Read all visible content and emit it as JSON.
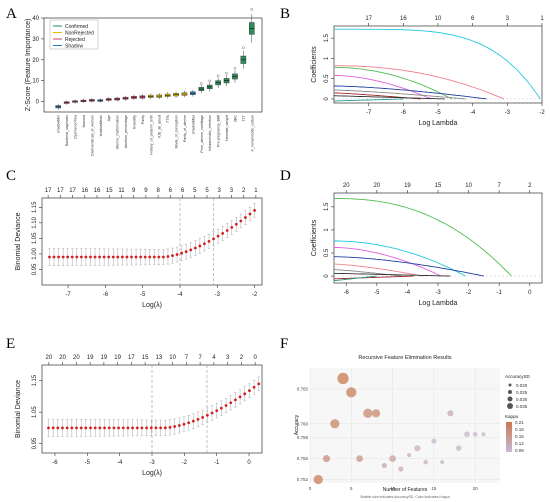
{
  "panel_labels": [
    "A",
    "B",
    "C",
    "D",
    "E",
    "F"
  ],
  "chart_data": [
    {
      "panel": "A",
      "type": "box",
      "ylabel": "Z-Score (Feature Importance)",
      "ylim": [
        -5,
        40
      ],
      "yticks": [
        0,
        10,
        20,
        30,
        40
      ],
      "legend": [
        {
          "name": "Confirmed",
          "color": "#2e8b57"
        },
        {
          "name": "NonRejected",
          "color": "#e8c000"
        },
        {
          "name": "Rejected",
          "color": "#d04060"
        },
        {
          "name": "Shadow",
          "color": "#2c7fb8"
        }
      ],
      "legend_position": "top-left",
      "categories": [
        "shadowMin",
        "Bacterial_vaginosis",
        "Dysmenorrhea",
        "Nausea",
        "Dietmenstrual_of_women",
        "shadowMean",
        "Age",
        "Uterine_malformation",
        "Abortion_percentage",
        "Gravidity",
        "Parity",
        "History_of_preterm_birth",
        "IUD_all_about",
        "TTTs",
        "Mode_of_conception",
        "Parity_of_uterine",
        "shadowMax",
        "Prior_uterine_curettage",
        "Intraamniotic_infection",
        "Pre-pregnancy_BMI",
        "Neonate_weight",
        "IIBC",
        "TTT",
        "X_nonamniotic_culture"
      ],
      "status": [
        "Shadow",
        "Rejected",
        "Rejected",
        "Rejected",
        "Rejected",
        "Shadow",
        "Rejected",
        "Rejected",
        "Rejected",
        "Rejected",
        "Rejected",
        "NonRejected",
        "NonRejected",
        "NonRejected",
        "NonRejected",
        "NonRejected",
        "Shadow",
        "Confirmed",
        "Confirmed",
        "Confirmed",
        "Confirmed",
        "Confirmed",
        "Confirmed",
        "Confirmed"
      ],
      "medians": [
        -2.5,
        -0.5,
        0,
        0.3,
        0.6,
        0.5,
        1,
        1.2,
        1.6,
        2,
        2.2,
        2.5,
        2.6,
        3,
        3.3,
        3.6,
        4,
        6,
        7,
        9,
        10,
        12,
        20,
        35
      ]
    },
    {
      "panel": "B",
      "type": "line",
      "xlabel": "Log Lambda",
      "ylabel": "Coefficients",
      "xlim": [
        -8,
        -2
      ],
      "ylim": [
        -0.1,
        1.8
      ],
      "xticks": [
        -7,
        -6,
        -5,
        -4,
        -3,
        -2
      ],
      "yticks": [
        0,
        0.5,
        1,
        1.5
      ],
      "top_axis_labels": [
        "17",
        "16",
        "10",
        "6",
        "3",
        "1"
      ],
      "top_axis_positions": [
        -7,
        -6,
        -5,
        -4,
        -3,
        -2
      ]
    },
    {
      "panel": "C",
      "type": "errorbar",
      "xlabel": "Log(λ)",
      "ylabel": "Binomial Deviance",
      "xlim": [
        -7.7,
        -1.8
      ],
      "ylim": [
        0.9,
        1.18
      ],
      "xticks": [
        -7,
        -6,
        -5,
        -4,
        -3,
        -2
      ],
      "yticks": [
        0.95,
        1.0,
        1.05,
        1.1,
        1.15
      ],
      "ytick_labels": [
        "0.95",
        "1.00",
        "1.05",
        "1.10",
        "1.15"
      ],
      "top_axis_labels": [
        "17",
        "17",
        "17",
        "16",
        "16",
        "15",
        "11",
        "9",
        "9",
        "8",
        "6",
        "6",
        "5",
        "5",
        "3",
        "3",
        "2",
        "1"
      ],
      "vlines": [
        -4.0,
        -3.1
      ],
      "x_start": -7.5,
      "x_end": -2.0,
      "n_points": 46,
      "y_min_value": 0.99,
      "y_end_value": 1.14
    },
    {
      "panel": "D",
      "type": "line",
      "xlabel": "Log Lambda",
      "ylabel": "Coefficients",
      "xlim": [
        -6.4,
        0.4
      ],
      "ylim": [
        -0.15,
        1.8
      ],
      "xticks": [
        -6,
        -5,
        -4,
        -3,
        -2,
        -1,
        0
      ],
      "yticks": [
        0,
        0.5,
        1,
        1.5
      ],
      "top_axis_labels": [
        "20",
        "20",
        "19",
        "15",
        "10",
        "7",
        "2"
      ],
      "top_axis_positions": [
        -6,
        -5,
        -4,
        -3,
        -2,
        -1,
        0
      ]
    },
    {
      "panel": "E",
      "type": "errorbar",
      "xlabel": "Log(λ)",
      "ylabel": "Binomial Deviance",
      "xlim": [
        -6.4,
        0.4
      ],
      "ylim": [
        0.92,
        1.2
      ],
      "xticks": [
        -6,
        -5,
        -4,
        -3,
        -2,
        -1,
        0
      ],
      "yticks": [
        0.95,
        1.05,
        1.15
      ],
      "ytick_labels": [
        "0.95",
        "1.05",
        "1.15"
      ],
      "top_axis_labels": [
        "20",
        "20",
        "20",
        "19",
        "19",
        "19",
        "17",
        "15",
        "13",
        "10",
        "7",
        "7",
        "4",
        "3",
        "2",
        "0"
      ],
      "vlines": [
        -3.0,
        -1.3
      ],
      "x_start": -6.2,
      "x_end": 0.3,
      "n_points": 46,
      "y_min_value": 1.0,
      "y_end_value": 1.14
    },
    {
      "panel": "F",
      "type": "scatter",
      "title": "Recursive Feature Elimination Results",
      "xlabel": "Number of Features",
      "ylabel": "Accuracy",
      "caption": "Bubble size indicates AccuracySD, Color indicates Kappa",
      "xlim": [
        0,
        23
      ],
      "ylim": [
        0.7515,
        0.768
      ],
      "xticks": [
        0,
        5,
        10,
        15,
        20
      ],
      "yticks": [
        0.752,
        0.755,
        0.758,
        0.76,
        0.765
      ],
      "ytick_labels": [
        "0.752",
        "0.755",
        "0.758",
        "0.760",
        "0.765"
      ],
      "size_legend": {
        "title": "AccuracySD",
        "values": [
          "0.020",
          "0.025",
          "0.030",
          "0.035"
        ]
      },
      "color_legend": {
        "title": "Kappa",
        "values": [
          "0.21",
          "0.18",
          "0.15",
          "0.12",
          "0.09"
        ],
        "low": "#c8b8d8",
        "high": "#c87a50"
      },
      "points": [
        {
          "x": 1,
          "y": 0.752,
          "sd": 0.03,
          "kappa": 0.2
        },
        {
          "x": 2,
          "y": 0.755,
          "sd": 0.026,
          "kappa": 0.17
        },
        {
          "x": 3,
          "y": 0.76,
          "sd": 0.03,
          "kappa": 0.19
        },
        {
          "x": 4,
          "y": 0.7665,
          "sd": 0.034,
          "kappa": 0.21
        },
        {
          "x": 5,
          "y": 0.7645,
          "sd": 0.032,
          "kappa": 0.2
        },
        {
          "x": 6,
          "y": 0.755,
          "sd": 0.025,
          "kappa": 0.16
        },
        {
          "x": 7,
          "y": 0.7615,
          "sd": 0.03,
          "kappa": 0.18
        },
        {
          "x": 8,
          "y": 0.7615,
          "sd": 0.028,
          "kappa": 0.18
        },
        {
          "x": 9,
          "y": 0.754,
          "sd": 0.022,
          "kappa": 0.13
        },
        {
          "x": 10,
          "y": 0.755,
          "sd": 0.025,
          "kappa": 0.14
        },
        {
          "x": 11,
          "y": 0.7535,
          "sd": 0.022,
          "kappa": 0.12
        },
        {
          "x": 12,
          "y": 0.7555,
          "sd": 0.02,
          "kappa": 0.12
        },
        {
          "x": 13,
          "y": 0.7565,
          "sd": 0.024,
          "kappa": 0.11
        },
        {
          "x": 14,
          "y": 0.7545,
          "sd": 0.021,
          "kappa": 0.11
        },
        {
          "x": 15,
          "y": 0.7575,
          "sd": 0.022,
          "kappa": 0.1
        },
        {
          "x": 16,
          "y": 0.7545,
          "sd": 0.02,
          "kappa": 0.1
        },
        {
          "x": 17,
          "y": 0.7615,
          "sd": 0.024,
          "kappa": 0.12
        },
        {
          "x": 18,
          "y": 0.7565,
          "sd": 0.023,
          "kappa": 0.1
        },
        {
          "x": 19,
          "y": 0.7585,
          "sd": 0.023,
          "kappa": 0.1
        },
        {
          "x": 20,
          "y": 0.7585,
          "sd": 0.021,
          "kappa": 0.1
        },
        {
          "x": 21,
          "y": 0.7585,
          "sd": 0.02,
          "kappa": 0.1
        }
      ]
    }
  ]
}
